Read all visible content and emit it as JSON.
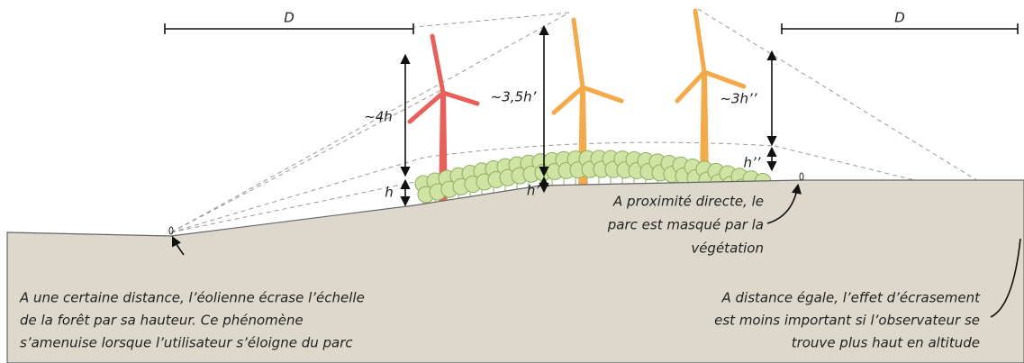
{
  "labels": {
    "distance_left": "D",
    "distance_right": "D",
    "ratio_1": "~4h",
    "height_1": "h",
    "ratio_2": "~3,5h’",
    "height_2": "h’",
    "ratio_3": "~3h’’",
    "height_3": "h’’"
  },
  "annotations": [
    {
      "lines": [
        "A une certaine distance, l’éolienne écrase l’échelle",
        "de la forêt par sa hauteur. Ce phénomène",
        "s’amenuise lorsque l’utilisateur s’éloigne du parc"
      ]
    },
    {
      "lines": [
        "A proximité directe, le",
        "parc est masqué par la",
        "végétation"
      ]
    },
    {
      "lines": [
        "A distance égale, l’effet d’écrasement",
        "est moins important si l’observateur se",
        "trouve plus haut en altitude"
      ]
    }
  ]
}
